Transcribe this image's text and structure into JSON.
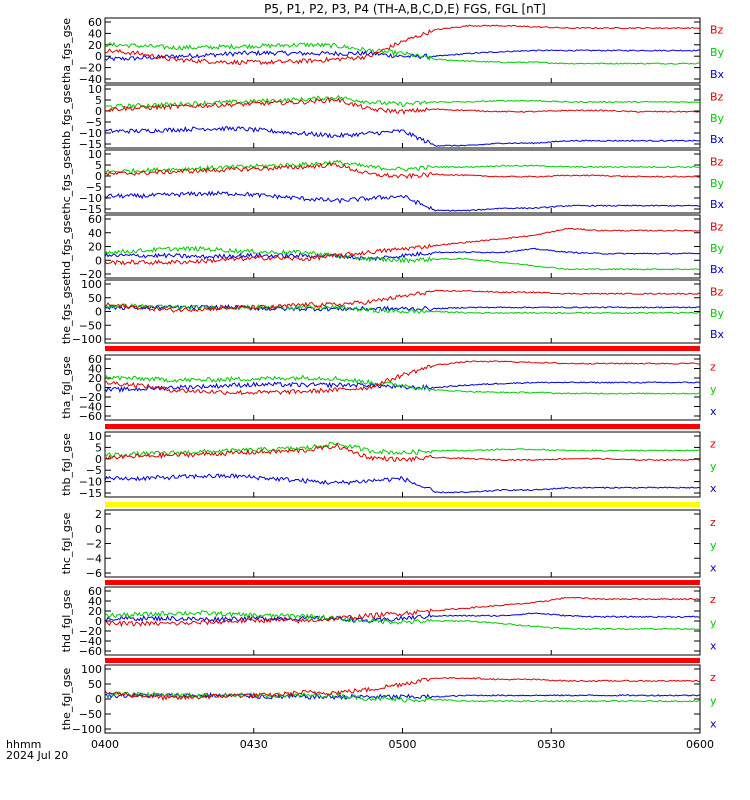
{
  "title": "P5, P1, P2, P3, P4 (TH-A,B,C,D,E) FGS, FGL [nT]",
  "x_label_line1": "hhmm",
  "x_label_line2": "2024 Jul 20",
  "x_ticks": [
    "0400",
    "0430",
    "0500",
    "0530",
    "0600"
  ],
  "colors": {
    "z": "#dd0000",
    "y": "#00cc00",
    "x": "#0000dd",
    "sep_red": "#ff0000",
    "sep_yellow": "#ffff00"
  },
  "chart_data": [
    {
      "type": "line",
      "ylabel": "tha_fgs_gse",
      "yticks": [
        "60",
        "40",
        "20",
        "0",
        "−20",
        "−40"
      ],
      "ylim": [
        -45,
        65
      ],
      "legend": [
        "Bz",
        "By",
        "Bx"
      ],
      "x_range": [
        "04:00",
        "06:00"
      ],
      "series": [
        {
          "name": "Bz",
          "color": "z",
          "values": [
            10,
            5,
            -5,
            -8,
            -10,
            -10,
            -8,
            -5,
            0,
            25,
            45,
            52,
            52,
            50,
            48,
            48,
            48,
            48,
            48
          ]
        },
        {
          "name": "By",
          "color": "y",
          "values": [
            20,
            18,
            15,
            15,
            17,
            18,
            20,
            18,
            10,
            5,
            -5,
            -8,
            -10,
            -10,
            -12,
            -12,
            -12,
            -12,
            -12
          ]
        },
        {
          "name": "Bx",
          "color": "x",
          "values": [
            -5,
            -3,
            0,
            2,
            5,
            6,
            5,
            5,
            5,
            0,
            0,
            5,
            8,
            10,
            10,
            10,
            10,
            10,
            10
          ]
        }
      ]
    },
    {
      "type": "line",
      "ylabel": "thb_fgs_gse",
      "yticks": [
        "10",
        "5",
        "0",
        "−5",
        "−10",
        "−15"
      ],
      "ylim": [
        -16,
        10
      ],
      "legend": [
        "Bz",
        "By",
        "Bx"
      ],
      "x_range": [
        "04:00",
        "06:00"
      ],
      "series": [
        {
          "name": "Bz",
          "color": "z",
          "values": [
            0,
            0.5,
            1,
            1.5,
            2,
            2.5,
            3,
            4,
            0,
            -1,
            0,
            -0.5,
            -1,
            -1,
            -0.5,
            -0.5,
            -1,
            -1,
            -1
          ]
        },
        {
          "name": "By",
          "color": "y",
          "values": [
            1,
            1.5,
            2,
            2.5,
            3,
            3.5,
            4,
            5,
            3,
            2,
            3,
            3,
            3.5,
            3.5,
            3,
            3,
            3,
            3,
            3
          ]
        },
        {
          "name": "Bx",
          "color": "x",
          "values": [
            -9,
            -9,
            -8.5,
            -8,
            -8,
            -9,
            -10,
            -11,
            -10,
            -9,
            -15,
            -15,
            -14,
            -14,
            -13,
            -13,
            -13,
            -13,
            -13
          ]
        }
      ]
    },
    {
      "type": "line",
      "ylabel": "thc_fgs_gse",
      "yticks": [
        "10",
        "5",
        "0",
        "−5",
        "−10",
        "−15"
      ],
      "ylim": [
        -16,
        10
      ],
      "legend": [
        "Bz",
        "By",
        "Bx"
      ],
      "x_range": [
        "04:00",
        "06:00"
      ],
      "series": [
        {
          "name": "Bz",
          "color": "z",
          "values": [
            0,
            0.5,
            1,
            1.5,
            2,
            2.5,
            3,
            4,
            0,
            -1,
            0,
            -0.5,
            -1,
            -1,
            -0.5,
            -0.5,
            -1,
            -1,
            -1
          ]
        },
        {
          "name": "By",
          "color": "y",
          "values": [
            1,
            1.5,
            2,
            2.5,
            3,
            3.5,
            4,
            5,
            3,
            2,
            3,
            3,
            3.5,
            3.5,
            3,
            3,
            3,
            3,
            3
          ]
        },
        {
          "name": "Bx",
          "color": "x",
          "values": [
            -9,
            -9,
            -8.5,
            -8,
            -8,
            -9,
            -10,
            -11,
            -10,
            -9,
            -15,
            -15,
            -14,
            -14,
            -13,
            -13,
            -13,
            -13,
            -13
          ]
        }
      ]
    },
    {
      "type": "line",
      "ylabel": "thd_fgs_gse",
      "yticks": [
        "60",
        "40",
        "20",
        "0",
        "−20"
      ],
      "ylim": [
        -28,
        65
      ],
      "legend": [
        "Bz",
        "By",
        "Bx"
      ],
      "x_range": [
        "04:00",
        "06:00"
      ],
      "series": [
        {
          "name": "Bz",
          "color": "z",
          "values": [
            -5,
            -5,
            -5,
            -3,
            0,
            2,
            0,
            5,
            10,
            15,
            20,
            25,
            30,
            35,
            45,
            42,
            42,
            42,
            42
          ]
        },
        {
          "name": "By",
          "color": "y",
          "values": [
            10,
            12,
            15,
            15,
            12,
            10,
            10,
            5,
            0,
            -2,
            0,
            0,
            -5,
            -10,
            -15,
            -15,
            -15,
            -15,
            -15
          ]
        },
        {
          "name": "Bx",
          "color": "x",
          "values": [
            5,
            5,
            5,
            3,
            5,
            5,
            5,
            5,
            0,
            5,
            10,
            10,
            10,
            15,
            10,
            8,
            8,
            8,
            8
          ]
        }
      ]
    },
    {
      "type": "line",
      "ylabel": "the_fgs_gse",
      "yticks": [
        "100",
        "50",
        "0",
        "−50",
        "−100"
      ],
      "ylim": [
        -120,
        110
      ],
      "legend": [
        "Bz",
        "By",
        "Bx"
      ],
      "x_range": [
        "04:00",
        "06:00"
      ],
      "series": [
        {
          "name": "Bz",
          "color": "z",
          "values": [
            20,
            10,
            0,
            5,
            10,
            10,
            20,
            20,
            30,
            50,
            70,
            70,
            65,
            65,
            60,
            60,
            60,
            60,
            60
          ]
        },
        {
          "name": "By",
          "color": "y",
          "values": [
            15,
            15,
            10,
            10,
            10,
            10,
            10,
            10,
            0,
            -5,
            -5,
            -10,
            -10,
            -10,
            -10,
            -10,
            -10,
            -10,
            -10
          ]
        },
        {
          "name": "Bx",
          "color": "x",
          "values": [
            10,
            10,
            10,
            10,
            10,
            5,
            5,
            5,
            5,
            5,
            5,
            10,
            10,
            10,
            10,
            10,
            10,
            10,
            10
          ]
        }
      ]
    },
    {
      "type": "line",
      "ylabel": "tha_fgl_gse",
      "yticks": [
        "60",
        "40",
        "20",
        "0",
        "−20",
        "−40",
        "−60"
      ],
      "ylim": [
        -65,
        65
      ],
      "legend": [
        "z",
        "y",
        "x"
      ],
      "x_range": [
        "04:00",
        "06:00"
      ],
      "series": [
        {
          "name": "z",
          "color": "z",
          "values": [
            10,
            5,
            -5,
            -8,
            -10,
            -10,
            -8,
            -5,
            0,
            25,
            45,
            52,
            52,
            50,
            48,
            48,
            48,
            48,
            48
          ]
        },
        {
          "name": "y",
          "color": "y",
          "values": [
            20,
            18,
            15,
            15,
            17,
            18,
            20,
            18,
            10,
            5,
            -5,
            -8,
            -10,
            -10,
            -12,
            -12,
            -12,
            -12,
            -12
          ]
        },
        {
          "name": "x",
          "color": "x",
          "values": [
            -5,
            -3,
            0,
            2,
            5,
            6,
            5,
            5,
            5,
            0,
            0,
            5,
            8,
            10,
            10,
            10,
            10,
            10,
            10
          ]
        }
      ]
    },
    {
      "type": "line",
      "ylabel": "thb_fgl_gse",
      "yticks": [
        "10",
        "5",
        "0",
        "−5",
        "−10",
        "−15"
      ],
      "ylim": [
        -17,
        11
      ],
      "legend": [
        "z",
        "y",
        "x"
      ],
      "x_range": [
        "04:00",
        "06:00"
      ],
      "series": [
        {
          "name": "z",
          "color": "z",
          "values": [
            0,
            0.5,
            1,
            1.5,
            2,
            2.5,
            3,
            5,
            0,
            -1,
            0,
            -0.5,
            -1,
            -1,
            -0.5,
            -0.5,
            -1,
            -1,
            -1
          ]
        },
        {
          "name": "y",
          "color": "y",
          "values": [
            1,
            1.5,
            2,
            2.5,
            3,
            3.5,
            4,
            6,
            3,
            2,
            3,
            3,
            3.5,
            3.5,
            3,
            3,
            3,
            3,
            3
          ]
        },
        {
          "name": "x",
          "color": "x",
          "values": [
            -9,
            -9,
            -8.5,
            -8,
            -8,
            -9,
            -10,
            -11,
            -10,
            -9,
            -15,
            -15,
            -14,
            -14,
            -13,
            -13,
            -13,
            -13,
            -13
          ]
        }
      ]
    },
    {
      "type": "line",
      "ylabel": "thc_fgl_gse",
      "yticks": [
        "2",
        "0",
        "−2",
        "−4",
        "−6"
      ],
      "ylim": [
        -7,
        3
      ],
      "legend": [
        "z",
        "y",
        "x"
      ],
      "x_range": [
        "04:00",
        "06:00"
      ],
      "series": []
    },
    {
      "type": "line",
      "ylabel": "thd_fgl_gse",
      "yticks": [
        "60",
        "40",
        "20",
        "0",
        "−20",
        "−40",
        "−60"
      ],
      "ylim": [
        -65,
        65
      ],
      "legend": [
        "z",
        "y",
        "x"
      ],
      "x_range": [
        "04:00",
        "06:00"
      ],
      "series": [
        {
          "name": "z",
          "color": "z",
          "values": [
            -5,
            -5,
            -5,
            -3,
            0,
            2,
            0,
            5,
            10,
            15,
            20,
            25,
            30,
            35,
            45,
            42,
            42,
            42,
            42
          ]
        },
        {
          "name": "y",
          "color": "y",
          "values": [
            10,
            12,
            15,
            15,
            12,
            10,
            10,
            5,
            0,
            -2,
            0,
            0,
            -5,
            -10,
            -15,
            -15,
            -15,
            -15,
            -15
          ]
        },
        {
          "name": "x",
          "color": "x",
          "values": [
            5,
            5,
            5,
            3,
            5,
            5,
            5,
            5,
            0,
            5,
            10,
            10,
            10,
            15,
            10,
            8,
            8,
            8,
            8
          ]
        }
      ]
    },
    {
      "type": "line",
      "ylabel": "the_fgl_gse",
      "yticks": [
        "100",
        "50",
        "0",
        "−50",
        "−100"
      ],
      "ylim": [
        -120,
        115
      ],
      "legend": [
        "z",
        "y",
        "x"
      ],
      "x_range": [
        "04:00",
        "06:00"
      ],
      "series": [
        {
          "name": "z",
          "color": "z",
          "values": [
            20,
            10,
            0,
            5,
            10,
            10,
            20,
            20,
            30,
            50,
            70,
            70,
            65,
            65,
            60,
            60,
            60,
            60,
            60
          ]
        },
        {
          "name": "y",
          "color": "y",
          "values": [
            15,
            15,
            10,
            10,
            10,
            10,
            10,
            10,
            0,
            -5,
            -5,
            -10,
            -10,
            -10,
            -10,
            -10,
            -10,
            -10,
            -10
          ]
        },
        {
          "name": "x",
          "color": "x",
          "values": [
            10,
            10,
            10,
            10,
            10,
            5,
            5,
            5,
            5,
            5,
            5,
            10,
            10,
            10,
            10,
            10,
            10,
            10,
            10
          ]
        }
      ]
    }
  ]
}
